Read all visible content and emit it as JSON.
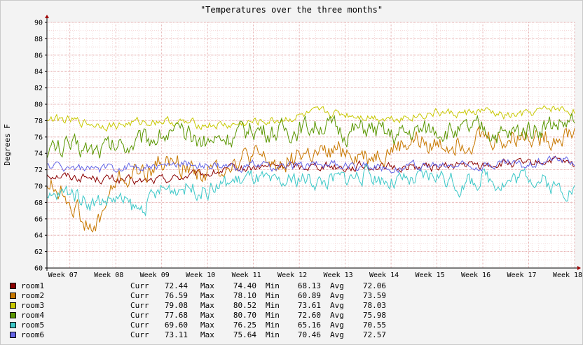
{
  "chart_data": {
    "type": "line",
    "title": "\"Temperatures over the three months\"",
    "ylabel": "Degrees F",
    "xlabel": "",
    "ylim": [
      60,
      90
    ],
    "yticks": [
      60,
      62,
      64,
      66,
      68,
      70,
      72,
      74,
      76,
      78,
      80,
      82,
      84,
      86,
      88,
      90
    ],
    "xticks": [
      "Week 07",
      "Week 08",
      "Week 09",
      "Week 10",
      "Week 11",
      "Week 12",
      "Week 13",
      "Week 14",
      "Week 15",
      "Week 16",
      "Week 17",
      "Week 18"
    ],
    "grid": true,
    "legend_position": "bottom",
    "x_weeks": [
      6.5,
      7,
      7.5,
      8,
      8.5,
      9,
      9.5,
      10,
      10.5,
      11,
      11.5,
      12,
      12.5,
      13,
      13.5,
      14,
      14.5,
      15,
      15.5,
      16,
      16.5,
      17,
      17.5,
      18
    ],
    "series": [
      {
        "name": "room1",
        "color": "#8b0000",
        "curr": "72.44",
        "max": "74.40",
        "min": "68.13",
        "avg": "72.06",
        "values": [
          71.5,
          71.2,
          71.0,
          70.8,
          70.5,
          70.8,
          71.2,
          71.5,
          72.0,
          72.2,
          72.5,
          72.4,
          72.6,
          72.3,
          72.5,
          72.2,
          72.4,
          72.3,
          72.6,
          72.5,
          72.8,
          72.6,
          73.2,
          72.4
        ]
      },
      {
        "name": "room2",
        "color": "#c87800",
        "curr": "76.59",
        "max": "78.10",
        "min": "60.89",
        "avg": "73.59",
        "values": [
          70.5,
          68.5,
          64.0,
          70.5,
          71.5,
          73.0,
          72.5,
          71.5,
          73.0,
          73.5,
          72.5,
          74.0,
          73.5,
          74.5,
          73.5,
          74.5,
          75.5,
          75.0,
          75.5,
          76.0,
          75.5,
          76.5,
          76.0,
          76.6
        ]
      },
      {
        "name": "room3",
        "color": "#c8c800",
        "curr": "79.08",
        "max": "80.52",
        "min": "73.61",
        "avg": "78.03",
        "values": [
          78.3,
          78.0,
          77.6,
          77.4,
          77.8,
          78.0,
          77.7,
          77.5,
          77.4,
          77.8,
          78.0,
          78.5,
          79.0,
          78.8,
          78.5,
          78.3,
          78.6,
          79.0,
          78.8,
          79.2,
          78.5,
          78.8,
          79.5,
          79.1
        ]
      },
      {
        "name": "room4",
        "color": "#5a9600",
        "curr": "77.68",
        "max": "80.70",
        "min": "72.60",
        "avg": "75.98",
        "values": [
          74.5,
          74.8,
          74.5,
          75.0,
          75.5,
          76.5,
          76.0,
          75.5,
          76.0,
          77.0,
          76.5,
          77.0,
          77.5,
          76.5,
          77.0,
          76.0,
          76.5,
          77.0,
          76.5,
          77.0,
          76.0,
          77.0,
          77.5,
          77.7
        ]
      },
      {
        "name": "room5",
        "color": "#3cc8c8",
        "curr": "69.60",
        "max": "76.25",
        "min": "65.16",
        "avg": "70.55",
        "values": [
          68.0,
          69.5,
          68.0,
          68.5,
          67.0,
          69.5,
          70.0,
          69.5,
          70.5,
          71.0,
          70.0,
          71.0,
          70.5,
          71.0,
          71.5,
          70.5,
          70.5,
          71.5,
          70.0,
          71.0,
          70.5,
          71.5,
          70.0,
          69.6
        ]
      },
      {
        "name": "room6",
        "color": "#6464e6",
        "curr": "73.11",
        "max": "75.64",
        "min": "70.46",
        "avg": "72.57",
        "values": [
          72.5,
          72.3,
          72.0,
          72.2,
          72.5,
          72.3,
          72.8,
          72.5,
          72.2,
          72.6,
          72.3,
          72.5,
          72.8,
          72.4,
          72.6,
          72.2,
          72.5,
          72.4,
          72.6,
          72.5,
          72.8,
          72.6,
          73.5,
          73.1
        ]
      }
    ],
    "legend_labels": {
      "curr": "Curr",
      "max": "Max",
      "min": "Min",
      "avg": "Avg"
    }
  }
}
